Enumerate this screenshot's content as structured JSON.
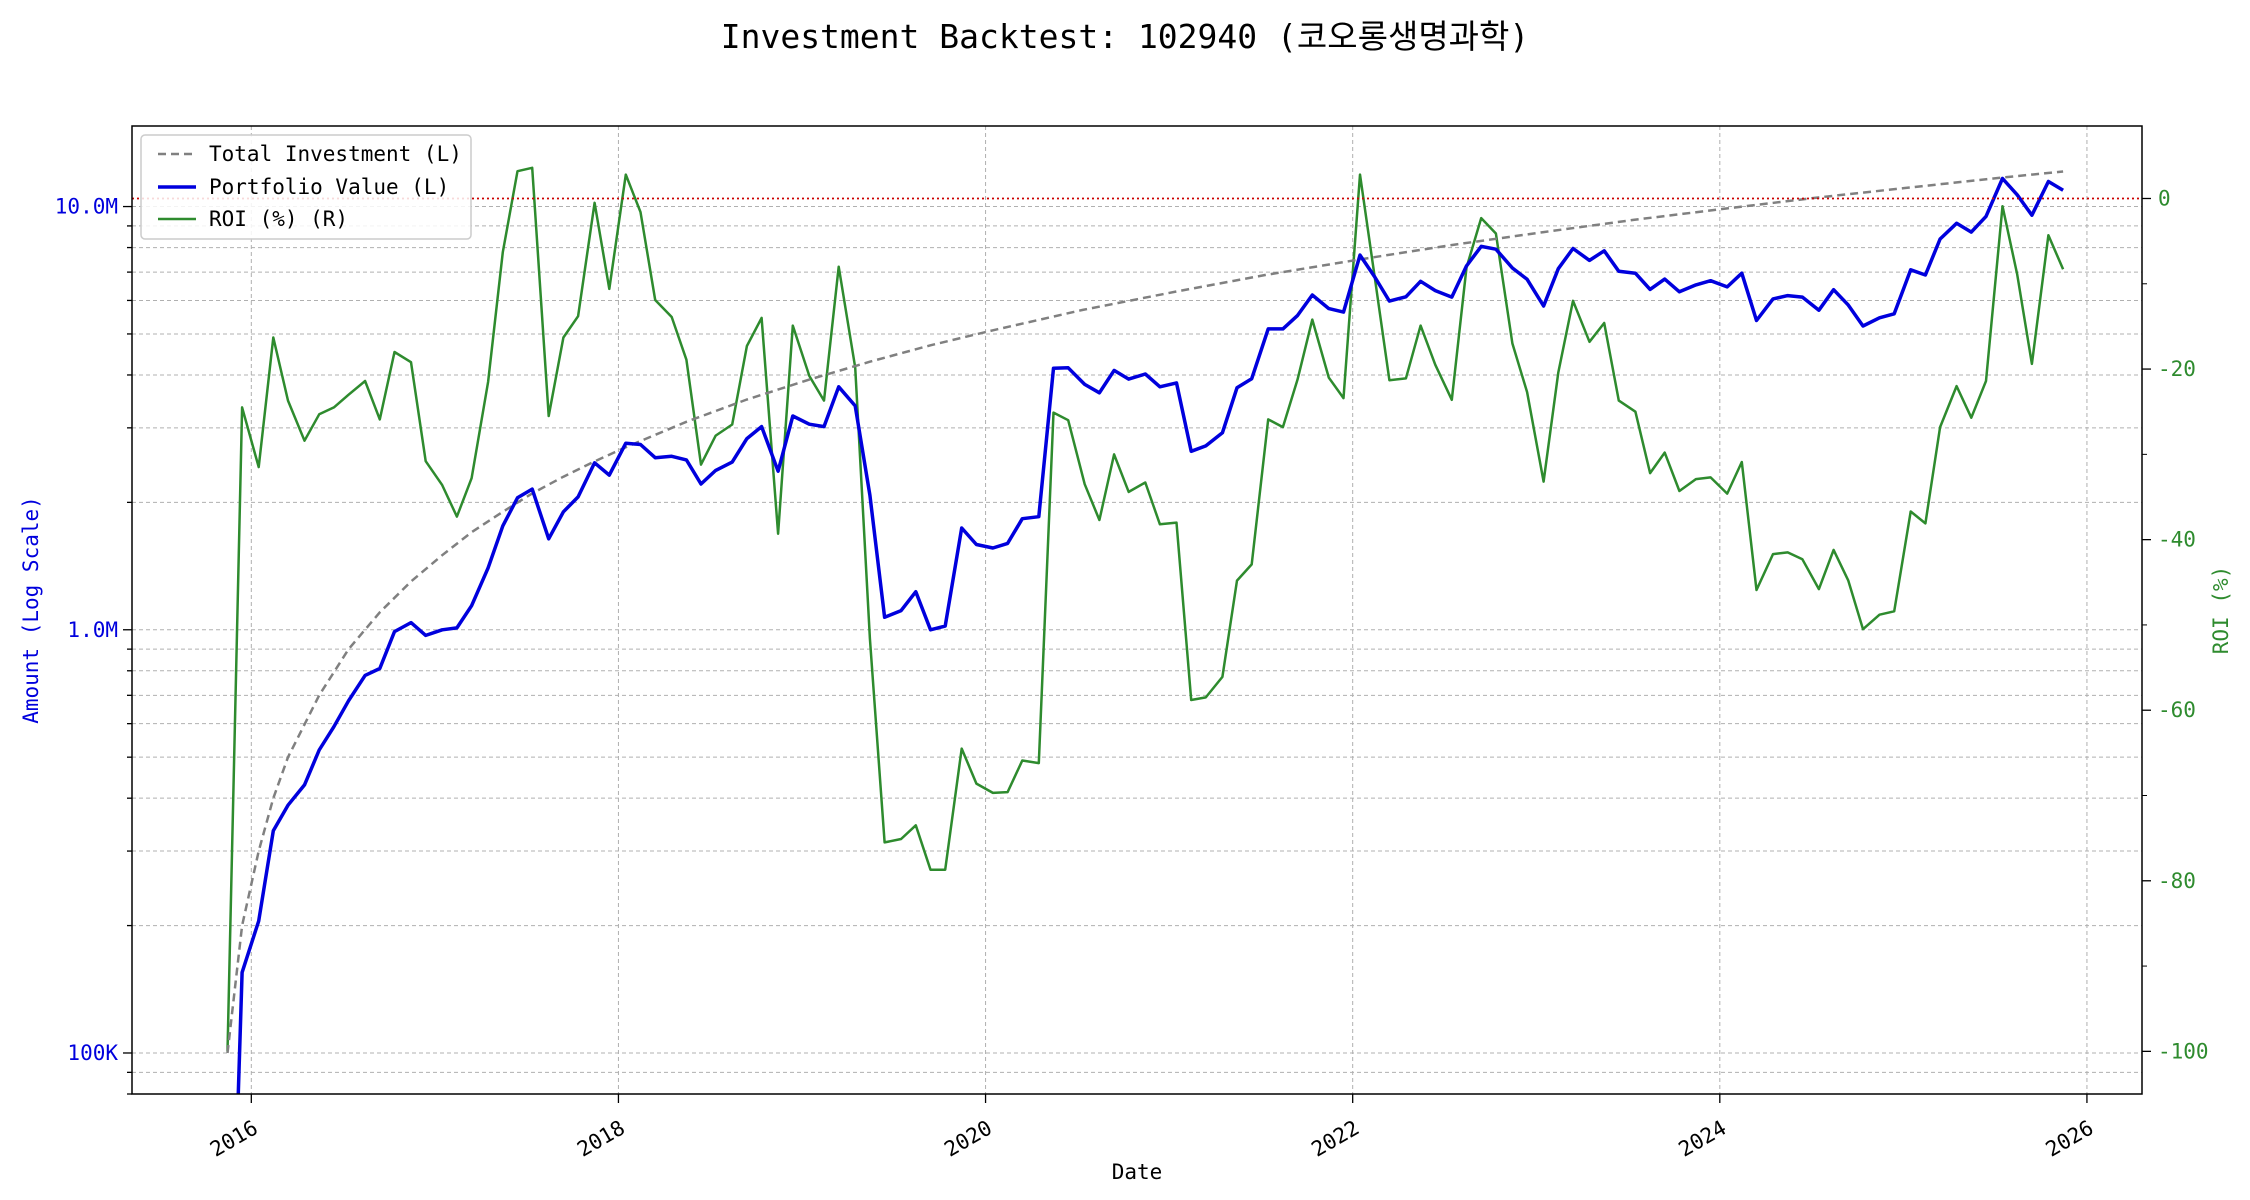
{
  "chart_data": {
    "type": "line",
    "title": "Investment Backtest: 102940 (코오롱생명과학)",
    "xlabel": "Date",
    "ylabel_left": "Amount (Log Scale)",
    "ylabel_right": "ROI (%)",
    "x_ticks": [
      "2016",
      "2018",
      "2020",
      "2022",
      "2024",
      "2026"
    ],
    "y_left_ticks": [
      "100K",
      "1.0M",
      "10.0M"
    ],
    "y_right_ticks": [
      "0",
      "-20",
      "-40",
      "-60",
      "-80",
      "-100"
    ],
    "y_left_scale": "log",
    "y_left_range": [
      80000,
      15500000
    ],
    "y_right_range": [
      -105,
      8.5
    ],
    "x_range": [
      2015.35,
      2026.3
    ],
    "grid": true,
    "legend_position": "upper-left",
    "reference_line": {
      "axis": "right",
      "value": 0,
      "color": "#cc0000",
      "style": "dotted"
    },
    "colors": {
      "investment": "#808080",
      "portfolio": "#0000dd",
      "roi": "#2e8b2e",
      "left_axis": "#0000dd",
      "right_axis": "#2e8b2e"
    },
    "series": [
      {
        "name": "Total Investment (L)",
        "axis": "left",
        "style": "dashed",
        "color": "#808080",
        "points": [
          [
            2015.87,
            100000
          ],
          [
            2015.95,
            200000
          ],
          [
            2016.04,
            300000
          ],
          [
            2016.12,
            400000
          ],
          [
            2016.2,
            500000
          ],
          [
            2016.37,
            700000
          ],
          [
            2016.53,
            900000
          ],
          [
            2016.7,
            1100000
          ],
          [
            2016.87,
            1300000
          ],
          [
            2017.04,
            1500000
          ],
          [
            2017.2,
            1700000
          ],
          [
            2017.37,
            1900000
          ],
          [
            2017.53,
            2100000
          ],
          [
            2017.7,
            2300000
          ],
          [
            2017.87,
            2500000
          ],
          [
            2018.04,
            2700000
          ],
          [
            2018.37,
            3100000
          ],
          [
            2018.7,
            3500000
          ],
          [
            2019.04,
            3900000
          ],
          [
            2019.37,
            4300000
          ],
          [
            2019.7,
            4700000
          ],
          [
            2020.04,
            5100000
          ],
          [
            2020.53,
            5700000
          ],
          [
            2021.04,
            6300000
          ],
          [
            2021.53,
            6900000
          ],
          [
            2022.04,
            7500000
          ],
          [
            2022.53,
            8100000
          ],
          [
            2023.04,
            8700000
          ],
          [
            2023.53,
            9300000
          ],
          [
            2024.04,
            9900000
          ],
          [
            2024.53,
            10500000
          ],
          [
            2025.04,
            11100000
          ],
          [
            2025.53,
            11700000
          ],
          [
            2025.87,
            12100000
          ]
        ]
      },
      {
        "name": "Portfolio Value (L)",
        "axis": "left",
        "style": "solid",
        "color": "#0000dd",
        "points": [
          [
            2015.92,
            60000
          ],
          [
            2015.95,
            155000
          ],
          [
            2016.04,
            205000
          ],
          [
            2016.12,
            335000
          ],
          [
            2016.2,
            385000
          ],
          [
            2016.29,
            430000
          ],
          [
            2016.37,
            520000
          ],
          [
            2016.45,
            590000
          ],
          [
            2016.53,
            680000
          ],
          [
            2016.62,
            780000
          ],
          [
            2016.7,
            810000
          ],
          [
            2016.78,
            990000
          ],
          [
            2016.87,
            1040000
          ],
          [
            2016.95,
            970000
          ],
          [
            2017.04,
            1000000
          ],
          [
            2017.12,
            1010000
          ],
          [
            2017.2,
            1140000
          ],
          [
            2017.29,
            1400000
          ],
          [
            2017.37,
            1760000
          ],
          [
            2017.45,
            2050000
          ],
          [
            2017.53,
            2150000
          ],
          [
            2017.62,
            1640000
          ],
          [
            2017.7,
            1900000
          ],
          [
            2017.78,
            2060000
          ],
          [
            2017.87,
            2480000
          ],
          [
            2017.95,
            2320000
          ],
          [
            2018.04,
            2760000
          ],
          [
            2018.12,
            2740000
          ],
          [
            2018.2,
            2550000
          ],
          [
            2018.29,
            2570000
          ],
          [
            2018.37,
            2520000
          ],
          [
            2018.45,
            2210000
          ],
          [
            2018.53,
            2380000
          ],
          [
            2018.62,
            2490000
          ],
          [
            2018.7,
            2830000
          ],
          [
            2018.78,
            3020000
          ],
          [
            2018.87,
            2370000
          ],
          [
            2018.95,
            3200000
          ],
          [
            2019.04,
            3060000
          ],
          [
            2019.12,
            3020000
          ],
          [
            2019.2,
            3750000
          ],
          [
            2019.29,
            3380000
          ],
          [
            2019.37,
            2080000
          ],
          [
            2019.45,
            1070000
          ],
          [
            2019.54,
            1110000
          ],
          [
            2019.62,
            1230000
          ],
          [
            2019.7,
            1000000
          ],
          [
            2019.78,
            1020000
          ],
          [
            2019.87,
            1740000
          ],
          [
            2019.95,
            1590000
          ],
          [
            2020.04,
            1560000
          ],
          [
            2020.12,
            1600000
          ],
          [
            2020.2,
            1830000
          ],
          [
            2020.29,
            1850000
          ],
          [
            2020.37,
            4150000
          ],
          [
            2020.45,
            4160000
          ],
          [
            2020.54,
            3800000
          ],
          [
            2020.62,
            3630000
          ],
          [
            2020.7,
            4100000
          ],
          [
            2020.78,
            3910000
          ],
          [
            2020.87,
            4020000
          ],
          [
            2020.95,
            3750000
          ],
          [
            2021.04,
            3830000
          ],
          [
            2021.12,
            2640000
          ],
          [
            2021.2,
            2720000
          ],
          [
            2021.29,
            2920000
          ],
          [
            2021.37,
            3730000
          ],
          [
            2021.45,
            3920000
          ],
          [
            2021.54,
            5140000
          ],
          [
            2021.62,
            5140000
          ],
          [
            2021.7,
            5530000
          ],
          [
            2021.78,
            6180000
          ],
          [
            2021.87,
            5740000
          ],
          [
            2021.95,
            5630000
          ],
          [
            2022.04,
            7680000
          ],
          [
            2022.12,
            6820000
          ],
          [
            2022.2,
            5980000
          ],
          [
            2022.29,
            6120000
          ],
          [
            2022.37,
            6660000
          ],
          [
            2022.45,
            6330000
          ],
          [
            2022.54,
            6110000
          ],
          [
            2022.62,
            7240000
          ],
          [
            2022.7,
            8050000
          ],
          [
            2022.78,
            7930000
          ],
          [
            2022.87,
            7160000
          ],
          [
            2022.95,
            6730000
          ],
          [
            2023.04,
            5820000
          ],
          [
            2023.12,
            7130000
          ],
          [
            2023.2,
            7960000
          ],
          [
            2023.29,
            7460000
          ],
          [
            2023.37,
            7860000
          ],
          [
            2023.45,
            7030000
          ],
          [
            2023.54,
            6960000
          ],
          [
            2023.62,
            6370000
          ],
          [
            2023.7,
            6740000
          ],
          [
            2023.78,
            6290000
          ],
          [
            2023.87,
            6530000
          ],
          [
            2023.95,
            6680000
          ],
          [
            2024.04,
            6460000
          ],
          [
            2024.12,
            6960000
          ],
          [
            2024.2,
            5380000
          ],
          [
            2024.29,
            6050000
          ],
          [
            2024.37,
            6160000
          ],
          [
            2024.45,
            6110000
          ],
          [
            2024.54,
            5690000
          ],
          [
            2024.62,
            6360000
          ],
          [
            2024.7,
            5850000
          ],
          [
            2024.78,
            5220000
          ],
          [
            2024.87,
            5460000
          ],
          [
            2024.95,
            5580000
          ],
          [
            2025.04,
            7090000
          ],
          [
            2025.12,
            6890000
          ],
          [
            2025.2,
            8380000
          ],
          [
            2025.29,
            9130000
          ],
          [
            2025.37,
            8700000
          ],
          [
            2025.45,
            9480000
          ],
          [
            2025.54,
            11650000
          ],
          [
            2025.62,
            10660000
          ],
          [
            2025.7,
            9540000
          ],
          [
            2025.79,
            11460000
          ],
          [
            2025.87,
            10930000
          ]
        ]
      },
      {
        "name": "ROI (%) (R)",
        "axis": "right",
        "style": "solid",
        "color": "#2e8b2e",
        "points": [
          [
            2015.87,
            -100
          ],
          [
            2015.95,
            -24.5
          ],
          [
            2016.04,
            -31.5
          ],
          [
            2016.12,
            -16.3
          ],
          [
            2016.2,
            -23.7
          ],
          [
            2016.29,
            -28.4
          ],
          [
            2016.37,
            -25.3
          ],
          [
            2016.45,
            -24.5
          ],
          [
            2016.53,
            -23
          ],
          [
            2016.62,
            -21.4
          ],
          [
            2016.7,
            -25.9
          ],
          [
            2016.78,
            -18
          ],
          [
            2016.87,
            -19.2
          ],
          [
            2016.95,
            -30.8
          ],
          [
            2017.04,
            -33.6
          ],
          [
            2017.12,
            -37.3
          ],
          [
            2017.2,
            -32.8
          ],
          [
            2017.29,
            -21.5
          ],
          [
            2017.37,
            -6.3
          ],
          [
            2017.45,
            3.2
          ],
          [
            2017.53,
            3.6
          ],
          [
            2017.62,
            -25.5
          ],
          [
            2017.7,
            -16.3
          ],
          [
            2017.78,
            -13.8
          ],
          [
            2017.87,
            -0.5
          ],
          [
            2017.95,
            -10.6
          ],
          [
            2018.04,
            2.8
          ],
          [
            2018.12,
            -1.6
          ],
          [
            2018.2,
            -11.9
          ],
          [
            2018.29,
            -13.9
          ],
          [
            2018.37,
            -18.9
          ],
          [
            2018.45,
            -31.2
          ],
          [
            2018.53,
            -27.8
          ],
          [
            2018.62,
            -26.5
          ],
          [
            2018.7,
            -17.3
          ],
          [
            2018.78,
            -14
          ],
          [
            2018.87,
            -39.3
          ],
          [
            2018.95,
            -14.9
          ],
          [
            2019.04,
            -20.8
          ],
          [
            2019.12,
            -23.7
          ],
          [
            2019.2,
            -8
          ],
          [
            2019.29,
            -19.8
          ],
          [
            2019.37,
            -51.6
          ],
          [
            2019.45,
            -75.5
          ],
          [
            2019.54,
            -75.1
          ],
          [
            2019.62,
            -73.5
          ],
          [
            2019.7,
            -78.7
          ],
          [
            2019.78,
            -78.7
          ],
          [
            2019.87,
            -64.5
          ],
          [
            2019.95,
            -68.6
          ],
          [
            2020.04,
            -69.7
          ],
          [
            2020.12,
            -69.6
          ],
          [
            2020.2,
            -65.9
          ],
          [
            2020.29,
            -66.2
          ],
          [
            2020.37,
            -25.1
          ],
          [
            2020.45,
            -26
          ],
          [
            2020.54,
            -33.5
          ],
          [
            2020.62,
            -37.7
          ],
          [
            2020.7,
            -30
          ],
          [
            2020.78,
            -34.4
          ],
          [
            2020.87,
            -33.3
          ],
          [
            2020.95,
            -38.2
          ],
          [
            2021.04,
            -38
          ],
          [
            2021.12,
            -58.8
          ],
          [
            2021.2,
            -58.5
          ],
          [
            2021.29,
            -56.1
          ],
          [
            2021.37,
            -44.8
          ],
          [
            2021.45,
            -42.9
          ],
          [
            2021.54,
            -25.9
          ],
          [
            2021.62,
            -26.8
          ],
          [
            2021.7,
            -21.2
          ],
          [
            2021.78,
            -14.2
          ],
          [
            2021.87,
            -21
          ],
          [
            2021.95,
            -23.4
          ],
          [
            2022.04,
            2.8
          ],
          [
            2022.12,
            -9.2
          ],
          [
            2022.2,
            -21.3
          ],
          [
            2022.29,
            -21.1
          ],
          [
            2022.37,
            -14.9
          ],
          [
            2022.45,
            -19.5
          ],
          [
            2022.54,
            -23.6
          ],
          [
            2022.62,
            -8.1
          ],
          [
            2022.7,
            -2.3
          ],
          [
            2022.78,
            -4.1
          ],
          [
            2022.87,
            -17
          ],
          [
            2022.95,
            -22.7
          ],
          [
            2023.04,
            -33.2
          ],
          [
            2023.12,
            -20.4
          ],
          [
            2023.2,
            -12
          ],
          [
            2023.29,
            -16.8
          ],
          [
            2023.37,
            -14.6
          ],
          [
            2023.45,
            -23.7
          ],
          [
            2023.54,
            -25
          ],
          [
            2023.62,
            -32.2
          ],
          [
            2023.7,
            -29.8
          ],
          [
            2023.78,
            -34.3
          ],
          [
            2023.87,
            -32.9
          ],
          [
            2023.95,
            -32.7
          ],
          [
            2024.04,
            -34.6
          ],
          [
            2024.12,
            -30.9
          ],
          [
            2024.2,
            -45.9
          ],
          [
            2024.29,
            -41.7
          ],
          [
            2024.37,
            -41.5
          ],
          [
            2024.45,
            -42.3
          ],
          [
            2024.54,
            -45.8
          ],
          [
            2024.62,
            -41.2
          ],
          [
            2024.7,
            -44.8
          ],
          [
            2024.78,
            -50.5
          ],
          [
            2024.87,
            -48.8
          ],
          [
            2024.95,
            -48.4
          ],
          [
            2025.04,
            -36.7
          ],
          [
            2025.12,
            -38.1
          ],
          [
            2025.2,
            -26.8
          ],
          [
            2025.29,
            -22
          ],
          [
            2025.37,
            -25.7
          ],
          [
            2025.45,
            -21.4
          ],
          [
            2025.54,
            -0.9
          ],
          [
            2025.62,
            -8.9
          ],
          [
            2025.7,
            -19.4
          ],
          [
            2025.79,
            -4.3
          ],
          [
            2025.87,
            -8.3
          ]
        ]
      }
    ]
  }
}
